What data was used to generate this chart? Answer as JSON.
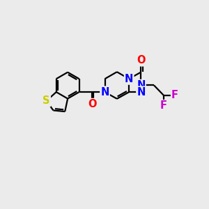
{
  "bg_color": "#ebebeb",
  "bond_color": "#000000",
  "bond_width": 1.6,
  "atom_colors": {
    "N": "#0000ff",
    "O": "#ff0000",
    "S": "#cccc00",
    "F": "#cc00cc",
    "C": "#000000"
  },
  "font_size_atom": 10.5
}
